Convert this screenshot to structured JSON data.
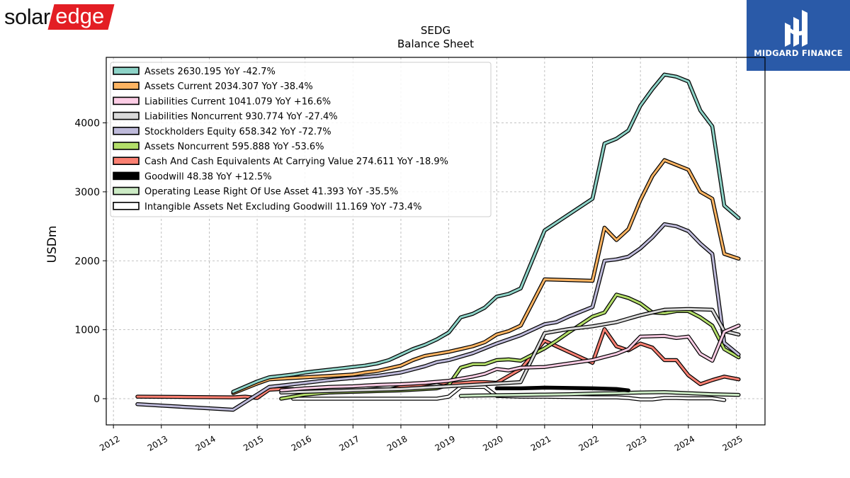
{
  "logos": {
    "left": {
      "part1": "solar",
      "part2": "edge",
      "accent": "#e31e24"
    },
    "right": {
      "name": "MIDGARD FINANCE",
      "background": "#2a5aa8"
    }
  },
  "chart_data": {
    "type": "line",
    "title": "SEDG",
    "subtitle": "Balance  Sheet",
    "ylabel": "USDm",
    "xlabel": "",
    "xlim": [
      2011.85,
      2025.6
    ],
    "ylim": [
      -380,
      4950
    ],
    "yticks": [
      0,
      1000,
      2000,
      3000,
      4000
    ],
    "xticks": [
      2012,
      2013,
      2014,
      2015,
      2016,
      2017,
      2018,
      2019,
      2020,
      2021,
      2022,
      2023,
      2024,
      2025
    ],
    "grid": true,
    "legend_position": "top-left",
    "series": [
      {
        "name": "Assets",
        "legend": "Assets  2630.195 YoY -42.7%",
        "color": "#8dd3c7",
        "x": [
          2014.5,
          2015.0,
          2015.25,
          2015.5,
          2015.75,
          2016.0,
          2016.25,
          2016.5,
          2016.75,
          2017.0,
          2017.25,
          2017.5,
          2017.75,
          2018.0,
          2018.25,
          2018.5,
          2018.75,
          2019.0,
          2019.25,
          2019.5,
          2019.75,
          2020.0,
          2020.25,
          2020.5,
          2021.0,
          2022.0,
          2022.25,
          2022.5,
          2022.75,
          2023.0,
          2023.25,
          2023.5,
          2023.75,
          2024.0,
          2024.25,
          2024.5,
          2024.75,
          2025.05
        ],
        "y": [
          100,
          250,
          310,
          330,
          350,
          380,
          400,
          420,
          440,
          460,
          480,
          510,
          560,
          640,
          720,
          780,
          860,
          960,
          1180,
          1230,
          1320,
          1480,
          1520,
          1600,
          2440,
          2900,
          3700,
          3770,
          3890,
          4250,
          4490,
          4700,
          4670,
          4600,
          4180,
          3950,
          2800,
          2620
        ]
      },
      {
        "name": "Assets Current",
        "legend": "Assets Current  2034.307 YoY -38.4%",
        "color": "#fdb462",
        "x": [
          2014.5,
          2015.0,
          2015.25,
          2015.5,
          2015.75,
          2016.0,
          2016.5,
          2017.0,
          2017.25,
          2017.5,
          2017.75,
          2018.0,
          2018.25,
          2018.5,
          2018.75,
          2019.0,
          2019.25,
          2019.5,
          2019.75,
          2020.0,
          2020.25,
          2020.5,
          2021.0,
          2022.0,
          2022.25,
          2022.5,
          2022.75,
          2023.0,
          2023.25,
          2023.5,
          2023.75,
          2024.0,
          2024.25,
          2024.5,
          2024.75,
          2025.05
        ],
        "y": [
          80,
          220,
          280,
          290,
          300,
          310,
          330,
          350,
          380,
          400,
          440,
          480,
          560,
          620,
          650,
          680,
          720,
          760,
          820,
          930,
          980,
          1060,
          1730,
          1710,
          2480,
          2300,
          2460,
          2880,
          3230,
          3460,
          3390,
          3320,
          3000,
          2900,
          2100,
          2030
        ]
      },
      {
        "name": "Liabilities Current",
        "legend": "Liabilities Current  1041.079 YoY +16.6%",
        "color": "#fccde5",
        "x": [
          2015.5,
          2016.0,
          2016.5,
          2017.0,
          2017.5,
          2018.0,
          2018.5,
          2019.0,
          2019.5,
          2019.75,
          2020.0,
          2020.25,
          2020.5,
          2021.0,
          2022.0,
          2022.5,
          2022.75,
          2023.0,
          2023.5,
          2023.75,
          2024.0,
          2024.25,
          2024.5,
          2024.75,
          2025.05
        ],
        "y": [
          120,
          150,
          170,
          180,
          200,
          210,
          230,
          260,
          320,
          360,
          430,
          410,
          450,
          460,
          560,
          650,
          720,
          900,
          910,
          880,
          900,
          650,
          550,
          970,
          1060
        ]
      },
      {
        "name": "Liabilities Noncurrent",
        "legend": "Liabilities Noncurrent  930.774 YoY -27.4%",
        "color": "#d9d9d9",
        "x": [
          2015.5,
          2016.0,
          2016.5,
          2017.0,
          2017.5,
          2018.0,
          2018.5,
          2019.0,
          2019.5,
          2020.0,
          2020.25,
          2020.5,
          2021.0,
          2021.5,
          2022.0,
          2022.5,
          2022.75,
          2023.0,
          2023.5,
          2024.0,
          2024.5,
          2024.75,
          2025.05
        ],
        "y": [
          90,
          100,
          110,
          120,
          130,
          140,
          160,
          180,
          200,
          220,
          230,
          240,
          950,
          1010,
          1050,
          1110,
          1160,
          1210,
          1290,
          1300,
          1290,
          980,
          930
        ]
      },
      {
        "name": "Stockholders Equity",
        "legend": "Stockholders Equity  658.342 YoY -72.7%",
        "color": "#bebada",
        "x": [
          2012.5,
          2013.0,
          2013.5,
          2014.0,
          2014.5,
          2015.0,
          2015.25,
          2015.5,
          2016.0,
          2016.5,
          2017.0,
          2017.5,
          2018.0,
          2018.5,
          2018.75,
          2019.0,
          2019.5,
          2019.75,
          2020.0,
          2020.5,
          2021.0,
          2021.25,
          2021.5,
          2022.0,
          2022.25,
          2022.5,
          2022.75,
          2023.0,
          2023.25,
          2023.5,
          2023.75,
          2024.0,
          2024.25,
          2024.5,
          2024.75,
          2025.05
        ],
        "y": [
          -80,
          -100,
          -120,
          -140,
          -160,
          60,
          170,
          190,
          230,
          270,
          300,
          330,
          380,
          470,
          530,
          560,
          660,
          730,
          800,
          920,
          1080,
          1110,
          1190,
          1330,
          2000,
          2020,
          2060,
          2180,
          2340,
          2530,
          2500,
          2430,
          2250,
          2100,
          810,
          640
        ]
      },
      {
        "name": "Assets Noncurrent",
        "legend": "Assets Noncurrent  595.888 YoY -53.6%",
        "color": "#b3de69",
        "x": [
          2015.5,
          2016.0,
          2016.5,
          2017.0,
          2017.5,
          2018.0,
          2018.5,
          2018.75,
          2019.0,
          2019.25,
          2019.5,
          2019.75,
          2020.0,
          2020.25,
          2020.5,
          2021.0,
          2021.25,
          2021.5,
          2022.0,
          2022.25,
          2022.5,
          2022.75,
          2023.0,
          2023.25,
          2023.5,
          2023.75,
          2024.0,
          2024.25,
          2024.5,
          2024.75,
          2025.05
        ],
        "y": [
          0,
          60,
          90,
          100,
          110,
          120,
          140,
          150,
          200,
          450,
          500,
          500,
          560,
          570,
          550,
          730,
          840,
          960,
          1190,
          1250,
          1510,
          1460,
          1380,
          1250,
          1240,
          1270,
          1270,
          1180,
          1060,
          720,
          600
        ]
      },
      {
        "name": "Cash And Cash Equivalents At Carrying Value",
        "legend": "Cash And Cash Equivalents At Carrying Value  274.611 YoY -18.9%",
        "color": "#fb8072",
        "x": [
          2012.5,
          2013.5,
          2014.5,
          2014.75,
          2015.0,
          2015.25,
          2015.5,
          2015.75,
          2016.0,
          2016.5,
          2017.0,
          2017.5,
          2017.75,
          2018.0,
          2018.25,
          2018.75,
          2019.0,
          2019.5,
          2019.75,
          2020.0,
          2020.5,
          2021.0,
          2022.0,
          2022.25,
          2022.5,
          2022.75,
          2023.0,
          2023.25,
          2023.5,
          2023.75,
          2024.0,
          2024.25,
          2024.5,
          2024.75,
          2025.05
        ],
        "y": [
          30,
          25,
          20,
          30,
          10,
          130,
          140,
          140,
          100,
          90,
          110,
          140,
          130,
          170,
          180,
          240,
          210,
          240,
          240,
          230,
          430,
          840,
          520,
          1010,
          760,
          700,
          800,
          740,
          560,
          560,
          340,
          210,
          270,
          320,
          280
        ]
      },
      {
        "name": "Goodwill",
        "legend": "Goodwill  48.38 YoY +12.5%",
        "color": "#000000",
        "x": [
          2020.0,
          2020.5,
          2021.0,
          2021.5,
          2022.0,
          2022.5,
          2022.75
        ],
        "y": [
          150,
          150,
          160,
          155,
          150,
          140,
          120
        ]
      },
      {
        "name": "Operating Lease Right Of Use Asset",
        "legend": "Operating Lease Right Of Use Asset  41.393 YoY -35.5%",
        "color": "#ccebc5",
        "x": [
          2019.25,
          2019.5,
          2020.0,
          2020.5,
          2021.0,
          2021.5,
          2022.0,
          2022.5,
          2023.0,
          2023.5,
          2024.0,
          2024.5,
          2025.05
        ],
        "y": [
          40,
          45,
          50,
          55,
          60,
          65,
          75,
          80,
          90,
          95,
          80,
          65,
          55
        ]
      },
      {
        "name": "Intangible Assets Net Excluding Goodwill",
        "legend": "Intangible Assets Net Excluding Goodwill  11.169 YoY -73.4%",
        "color": "#ffffff",
        "x": [
          2015.75,
          2016.5,
          2017.5,
          2018.5,
          2018.75,
          2019.0,
          2019.25,
          2019.75,
          2020.0,
          2020.5,
          2021.0,
          2021.5,
          2022.0,
          2022.5,
          2022.75,
          2023.0,
          2023.25,
          2023.5,
          2023.75,
          2024.0,
          2024.25,
          2024.5,
          2024.75
        ],
        "y": [
          0,
          0,
          0,
          0,
          0,
          30,
          170,
          170,
          40,
          30,
          30,
          25,
          20,
          20,
          10,
          -10,
          -10,
          10,
          10,
          5,
          5,
          5,
          -20
        ]
      }
    ]
  }
}
